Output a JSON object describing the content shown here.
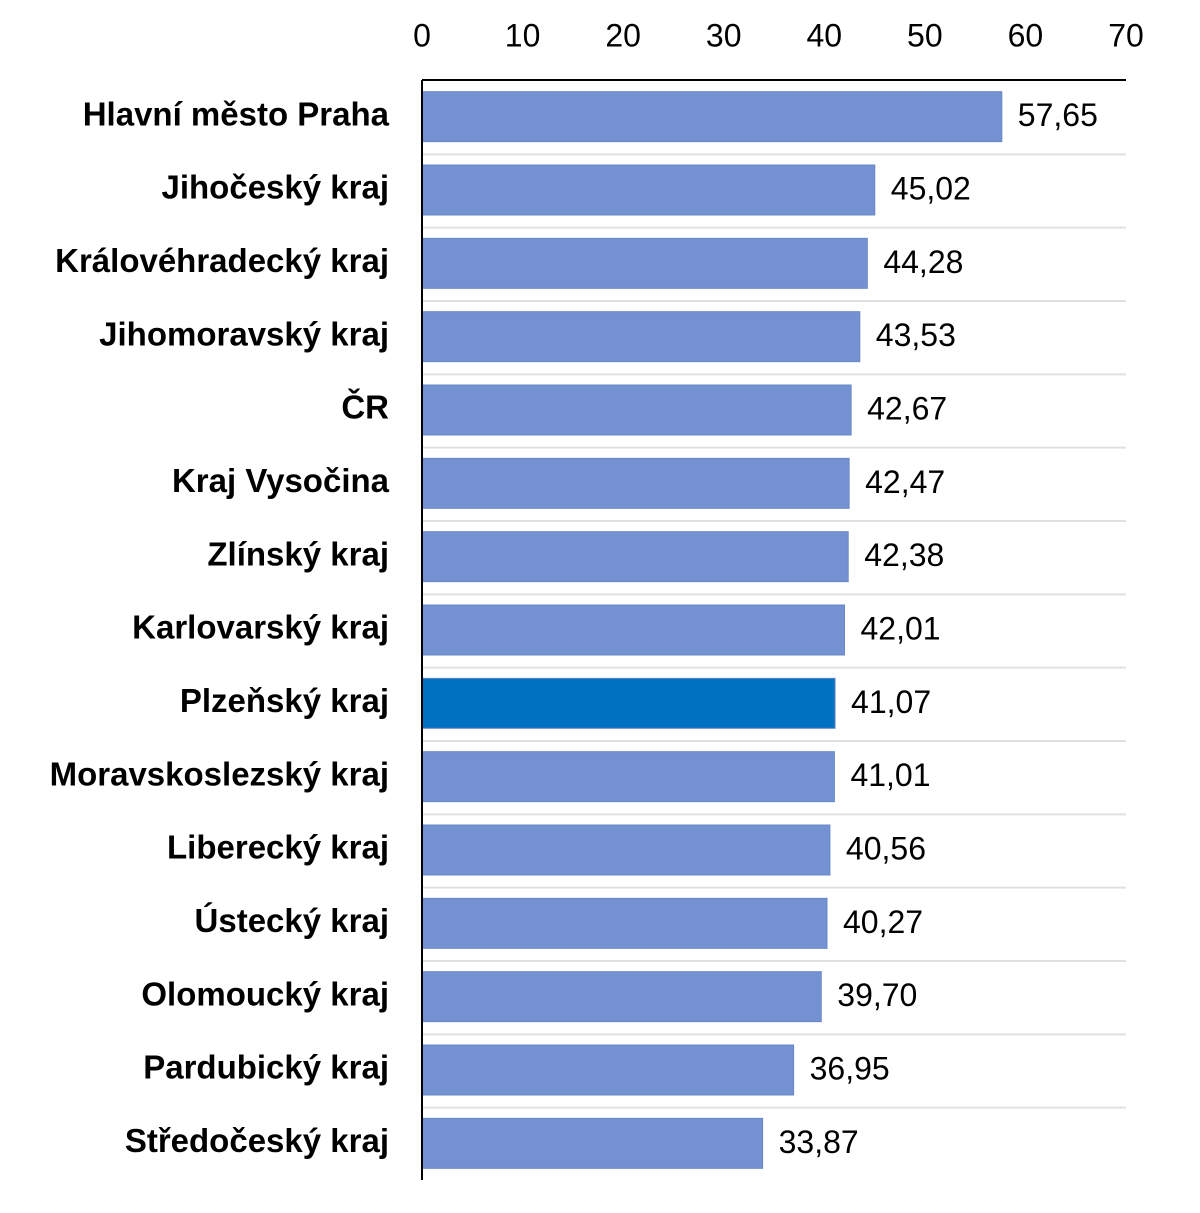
{
  "chart_data": {
    "type": "hbar",
    "categories": [
      "Hlavní město Praha",
      "Jihočeský kraj",
      "Královéhradecký kraj",
      "Jihomoravský kraj",
      "ČR",
      "Kraj Vysočina",
      "Zlínský kraj",
      "Karlovarský kraj",
      "Plzeňský kraj",
      "Moravskoslezský kraj",
      "Liberecký kraj",
      "Ústecký kraj",
      "Olomoucký kraj",
      "Pardubický kraj",
      "Středočeský kraj"
    ],
    "values": [
      57.65,
      45.02,
      44.28,
      43.53,
      42.67,
      42.47,
      42.38,
      42.01,
      41.07,
      41.01,
      40.56,
      40.27,
      39.7,
      36.95,
      33.87
    ],
    "value_labels": [
      "57,65",
      "45,02",
      "44,28",
      "43,53",
      "42,67",
      "42,47",
      "42,38",
      "42,01",
      "41,07",
      "41,01",
      "40,56",
      "40,27",
      "39,70",
      "36,95",
      "33,87"
    ],
    "colors": [
      "#7492d2",
      "#7492d2",
      "#7492d2",
      "#7492d2",
      "#7492d2",
      "#7492d2",
      "#7492d2",
      "#7492d2",
      "#0070c0",
      "#7492d2",
      "#7492d2",
      "#7492d2",
      "#7492d2",
      "#7492d2",
      "#7492d2"
    ],
    "xlim": [
      0,
      70
    ],
    "xticks": [
      0,
      10,
      20,
      30,
      40,
      50,
      60,
      70
    ]
  }
}
